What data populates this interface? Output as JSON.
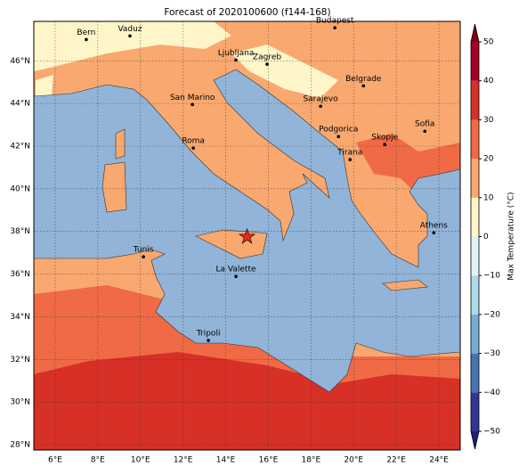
{
  "title": "Forecast of 2020100600 (f144-168)",
  "map": {
    "xlim": [
      5.0,
      25.0
    ],
    "ylim": [
      27.75,
      47.85
    ],
    "xticks": [
      {
        "value": 6,
        "label": "6°E"
      },
      {
        "value": 8,
        "label": "8°E"
      },
      {
        "value": 10,
        "label": "10°E"
      },
      {
        "value": 12,
        "label": "12°E"
      },
      {
        "value": 14,
        "label": "14°E"
      },
      {
        "value": 16,
        "label": "16°E"
      },
      {
        "value": 18,
        "label": "18°E"
      },
      {
        "value": 20,
        "label": "20°E"
      },
      {
        "value": 22,
        "label": "22°E"
      },
      {
        "value": 24,
        "label": "24°E"
      }
    ],
    "yticks": [
      {
        "value": 28,
        "label": "28°N"
      },
      {
        "value": 30,
        "label": "30°N"
      },
      {
        "value": 32,
        "label": "32°N"
      },
      {
        "value": 34,
        "label": "34°N"
      },
      {
        "value": 36,
        "label": "36°N"
      },
      {
        "value": 38,
        "label": "38°N"
      },
      {
        "value": 40,
        "label": "40°N"
      },
      {
        "value": 42,
        "label": "42°N"
      },
      {
        "value": 44,
        "label": "44°N"
      },
      {
        "value": 46,
        "label": "46°N"
      }
    ],
    "grid": true,
    "cities": [
      {
        "name": "Bern",
        "lon": 7.46,
        "lat": 47.0
      },
      {
        "name": "Vaduz",
        "lon": 9.51,
        "lat": 47.17
      },
      {
        "name": "Budapest",
        "lon": 19.12,
        "lat": 47.55
      },
      {
        "name": "Ljubljana",
        "lon": 14.48,
        "lat": 46.04
      },
      {
        "name": "Zagreb",
        "lon": 15.94,
        "lat": 45.84
      },
      {
        "name": "Belgrade",
        "lon": 20.46,
        "lat": 44.83
      },
      {
        "name": "San Marino",
        "lon": 12.44,
        "lat": 43.95
      },
      {
        "name": "Sarajevo",
        "lon": 18.45,
        "lat": 43.87
      },
      {
        "name": "Sofia",
        "lon": 23.34,
        "lat": 42.7
      },
      {
        "name": "Roma",
        "lon": 12.48,
        "lat": 41.91
      },
      {
        "name": "Podgorica",
        "lon": 19.29,
        "lat": 42.45
      },
      {
        "name": "Skopje",
        "lon": 21.46,
        "lat": 42.08
      },
      {
        "name": "Tirana",
        "lon": 19.83,
        "lat": 41.37
      },
      {
        "name": "Athens",
        "lon": 23.76,
        "lat": 37.94
      },
      {
        "name": "Tunis",
        "lon": 10.14,
        "lat": 36.81
      },
      {
        "name": "La Valette",
        "lon": 14.48,
        "lat": 35.89
      },
      {
        "name": "Tripoli",
        "lon": 13.19,
        "lat": 32.89
      }
    ],
    "star": {
      "lon": 15.0,
      "lat": 37.75,
      "color": "#e8251f"
    }
  },
  "colorbar": {
    "label": "Max Temperature (°C)",
    "lim": [
      -50,
      50
    ],
    "ticks": [
      {
        "value": -50,
        "label": "−50"
      },
      {
        "value": -40,
        "label": "−40"
      },
      {
        "value": -30,
        "label": "−30"
      },
      {
        "value": -20,
        "label": "−20"
      },
      {
        "value": -10,
        "label": "−10"
      },
      0,
      10,
      20,
      30,
      40,
      50
    ],
    "colors": [
      "#313695",
      "#4575b4",
      "#74add1",
      "#abd9e9",
      "#e0f3f8",
      "#fef6c8",
      "#f9a86f",
      "#ef6a45",
      "#d73027",
      "#a50026"
    ],
    "under": "#1f1f7a",
    "over": "#7a0018"
  }
}
